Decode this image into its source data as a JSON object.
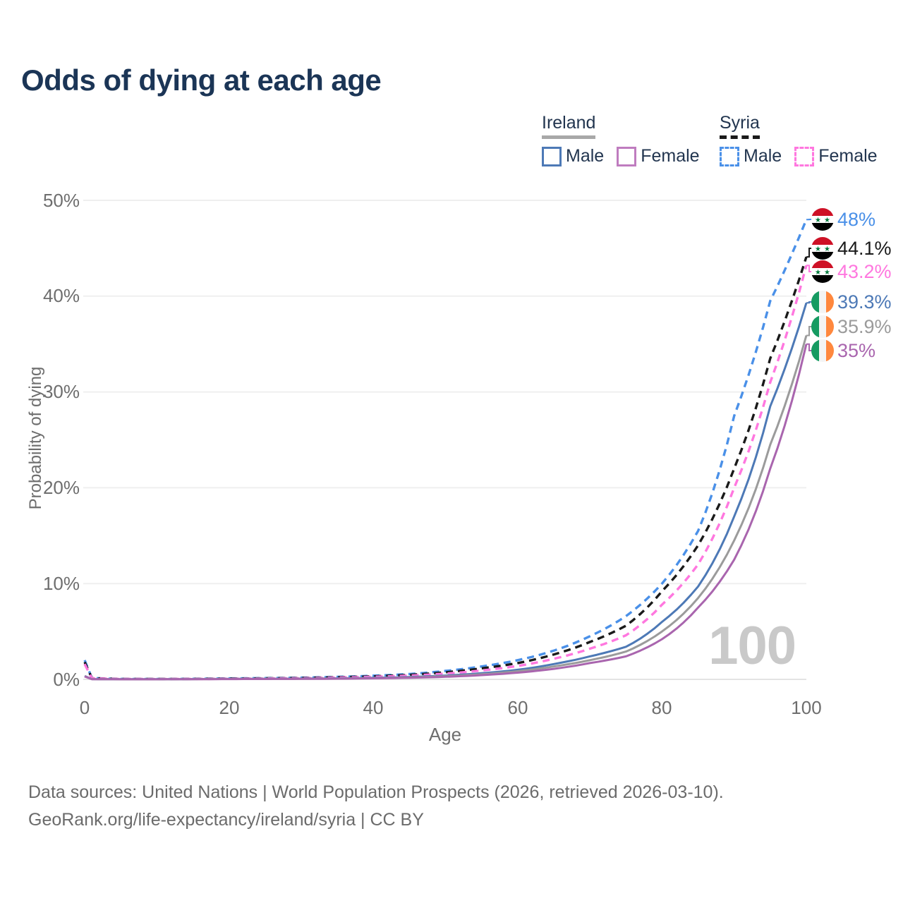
{
  "title": "Odds of dying at each age",
  "legend": {
    "groups": [
      {
        "label": "Ireland",
        "line_style": "solid",
        "line_color": "#a8a8a8",
        "items": [
          {
            "label": "Male",
            "color": "#4d79b6",
            "style": "solid"
          },
          {
            "label": "Female",
            "color": "#bf7cbf",
            "style": "solid"
          }
        ]
      },
      {
        "label": "Syria",
        "line_style": "dashed",
        "line_color": "#1a1a1a",
        "items": [
          {
            "label": "Male",
            "color": "#4a90e8",
            "style": "dashed"
          },
          {
            "label": "Female",
            "color": "#ff77df",
            "style": "dashed"
          }
        ]
      }
    ]
  },
  "axes": {
    "y": {
      "label": "Probability of dying",
      "tick_labels": [
        "0%",
        "10%",
        "20%",
        "30%",
        "40%",
        "50%"
      ]
    },
    "x": {
      "label": "Age",
      "tick_labels": [
        "0",
        "20",
        "40",
        "60",
        "80",
        "100"
      ]
    }
  },
  "watermark": "100",
  "footer": {
    "line1": "Data sources: United Nations | World Population Prospects (2026, retrieved 2026-03-10).",
    "line2": "GeoRank.org/life-expectancy/ireland/syria | CC BY"
  },
  "chart_data": {
    "type": "line",
    "title": "Odds of dying at each age",
    "xlabel": "Age",
    "ylabel": "Probability of dying",
    "xlim": [
      0,
      100
    ],
    "ylim": [
      0,
      50
    ],
    "grid": true,
    "legend_position": "top-right",
    "unit": "percent",
    "x": [
      0,
      1,
      5,
      10,
      15,
      20,
      25,
      30,
      35,
      40,
      45,
      50,
      55,
      60,
      65,
      70,
      75,
      80,
      85,
      90,
      95,
      100
    ],
    "series": [
      {
        "name": "Syria Male",
        "country": "Syria",
        "sex": "male",
        "color": "#4a90e8",
        "dash": true,
        "end_label": "48%",
        "end_value": 48,
        "values": [
          2.0,
          0.15,
          0.05,
          0.04,
          0.06,
          0.1,
          0.13,
          0.18,
          0.26,
          0.38,
          0.56,
          0.88,
          1.35,
          2.0,
          3.0,
          4.5,
          6.6,
          10.0,
          15.5,
          27.5,
          39.5,
          48.0
        ]
      },
      {
        "name": "Syria Total",
        "country": "Syria",
        "sex": "all",
        "color": "#1a1a1a",
        "dash": true,
        "end_label": "44.1%",
        "end_value": 44.1,
        "values": [
          1.8,
          0.13,
          0.045,
          0.035,
          0.05,
          0.08,
          0.11,
          0.15,
          0.22,
          0.32,
          0.47,
          0.74,
          1.15,
          1.7,
          2.6,
          3.9,
          5.6,
          9.2,
          14.0,
          22.0,
          33.5,
          44.1
        ]
      },
      {
        "name": "Syria Female",
        "country": "Syria",
        "sex": "female",
        "color": "#ff77df",
        "dash": true,
        "end_label": "43.2%",
        "end_value": 43.2,
        "values": [
          1.6,
          0.12,
          0.04,
          0.03,
          0.04,
          0.06,
          0.09,
          0.12,
          0.18,
          0.27,
          0.39,
          0.6,
          0.93,
          1.4,
          2.15,
          3.2,
          4.6,
          7.8,
          12.0,
          20.0,
          31.0,
          43.2
        ]
      },
      {
        "name": "Ireland Male",
        "country": "Ireland",
        "sex": "male",
        "color": "#4d79b6",
        "dash": false,
        "end_label": "39.3%",
        "end_value": 39.3,
        "values": [
          0.35,
          0.03,
          0.012,
          0.012,
          0.03,
          0.05,
          0.065,
          0.08,
          0.11,
          0.16,
          0.25,
          0.4,
          0.64,
          1.0,
          1.6,
          2.4,
          3.4,
          6.0,
          9.7,
          17.0,
          28.5,
          39.3
        ]
      },
      {
        "name": "Ireland Total",
        "country": "Ireland",
        "sex": "all",
        "color": "#9b9b9b",
        "dash": false,
        "end_label": "35.9%",
        "end_value": 35.9,
        "values": [
          0.32,
          0.027,
          0.011,
          0.011,
          0.025,
          0.04,
          0.05,
          0.065,
          0.09,
          0.13,
          0.2,
          0.33,
          0.53,
          0.85,
          1.35,
          2.0,
          2.9,
          5.0,
          8.5,
          14.5,
          24.5,
          35.9
        ]
      },
      {
        "name": "Ireland Female",
        "country": "Ireland",
        "sex": "female",
        "color": "#a965ae",
        "dash": false,
        "end_label": "35%",
        "end_value": 35,
        "values": [
          0.3,
          0.025,
          0.01,
          0.01,
          0.02,
          0.03,
          0.04,
          0.05,
          0.07,
          0.11,
          0.17,
          0.27,
          0.44,
          0.7,
          1.1,
          1.7,
          2.4,
          4.2,
          7.5,
          12.5,
          22.0,
          35.0
        ]
      }
    ]
  }
}
